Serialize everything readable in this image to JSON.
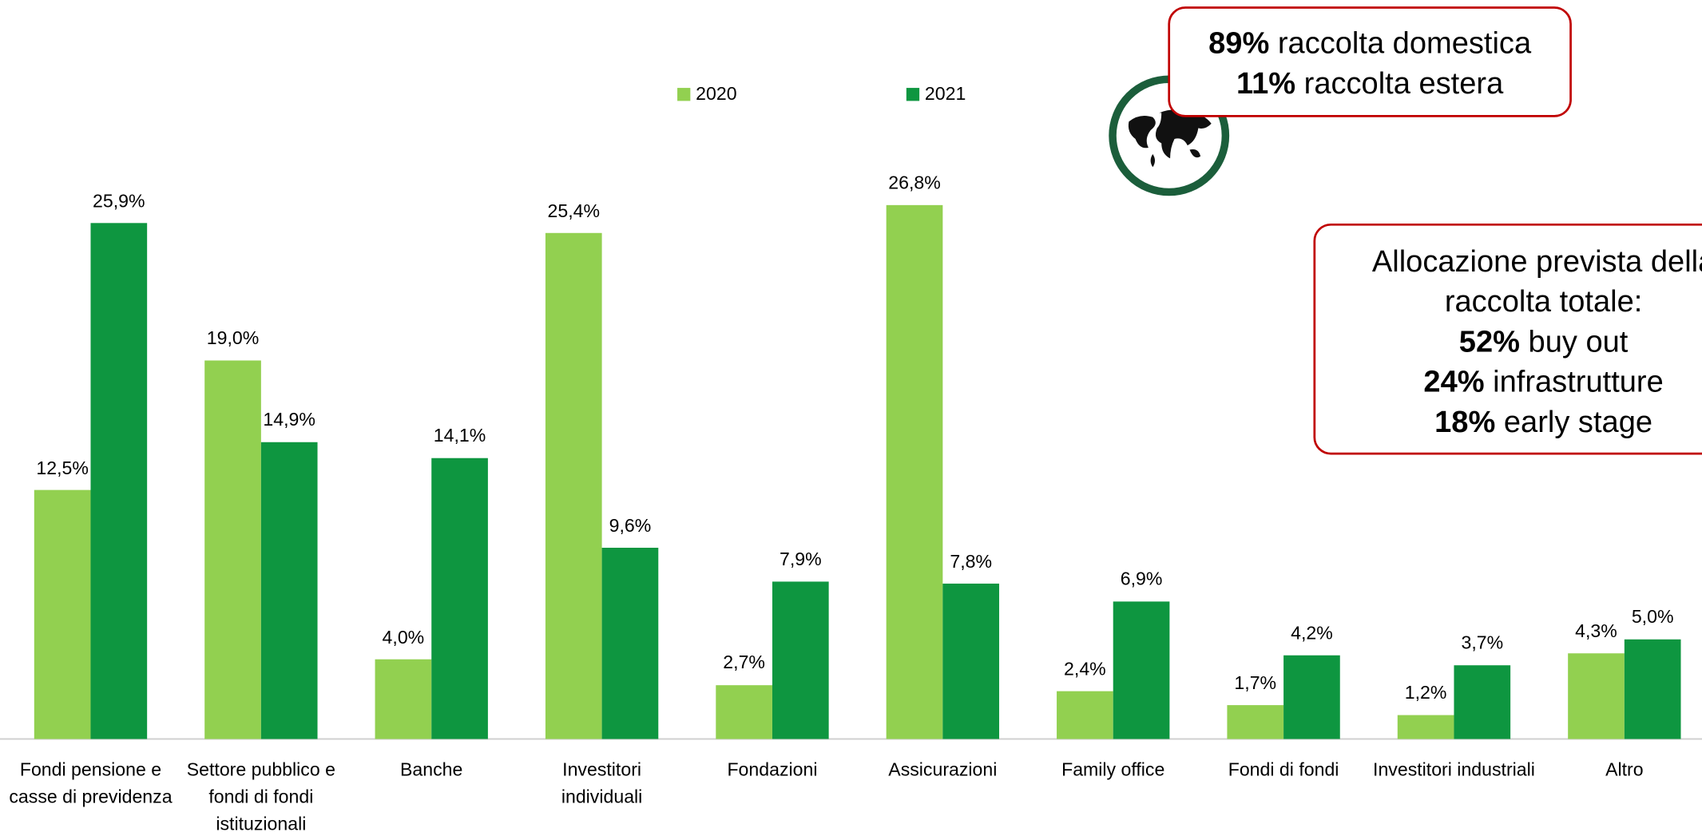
{
  "chart_data": {
    "type": "bar",
    "categories": [
      "Fondi pensione e casse di previdenza",
      "Settore pubblico e fondi di fondi istituzionali",
      "Banche",
      "Investitori individuali",
      "Fondazioni",
      "Assicurazioni",
      "Family office",
      "Fondi di fondi",
      "Investitori industriali",
      "Altro"
    ],
    "series": [
      {
        "name": "2020",
        "color": "#92d050",
        "values": [
          12.5,
          19.0,
          4.0,
          25.4,
          2.7,
          26.8,
          2.4,
          1.7,
          1.2,
          4.3
        ],
        "value_labels": [
          "12,5%",
          "19,0%",
          "4,0%",
          "25,4%",
          "2,7%",
          "26,8%",
          "2,4%",
          "1,7%",
          "1,2%",
          "4,3%"
        ]
      },
      {
        "name": "2021",
        "color": "#0e9640",
        "values": [
          25.9,
          14.9,
          14.1,
          9.6,
          7.9,
          7.8,
          6.9,
          4.2,
          3.7,
          5.0
        ],
        "value_labels": [
          "25,9%",
          "14,9%",
          "14,1%",
          "9,6%",
          "7,9%",
          "7,8%",
          "6,9%",
          "4,2%",
          "3,7%",
          "5,0%"
        ]
      }
    ],
    "legend": "top",
    "annotations": [
      {
        "lines": [
          {
            "bold": "89%",
            "text": "raccolta domestica"
          },
          {
            "bold": "11%",
            "text": "raccolta estera"
          }
        ]
      },
      {
        "lines": [
          {
            "text": "Allocazione prevista della"
          },
          {
            "text": "raccolta totale:"
          },
          {
            "bold": "52%",
            "text": "buy out"
          },
          {
            "bold": "24%",
            "text": "infrastrutture"
          },
          {
            "bold": "18%",
            "text": "early stage"
          }
        ]
      }
    ]
  }
}
